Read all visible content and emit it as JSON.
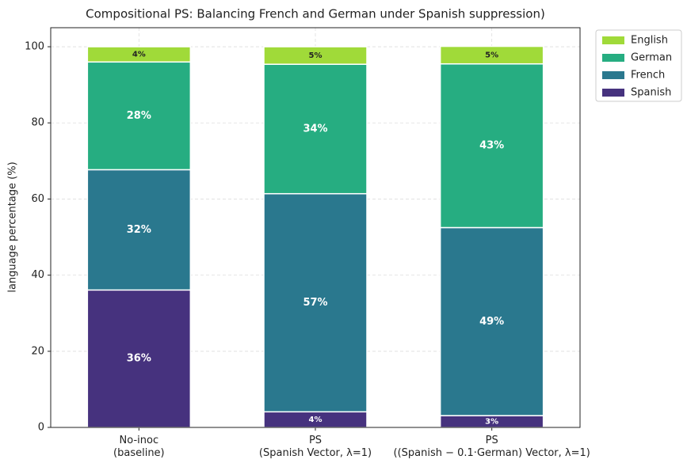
{
  "chart_data": {
    "type": "bar",
    "stacked": true,
    "title": "Compositional PS: Balancing French and German under Spanish suppression)",
    "y_label": "language percentage (%)",
    "categories": [
      "No-inoc\n(baseline)",
      "PS\n(Spanish Vector, λ=1)",
      "PS\n((Spanish − 0.1·German) Vector, λ=1)"
    ],
    "series": [
      {
        "name": "Spanish",
        "color": "#46327e",
        "values": [
          36.1,
          4.1,
          3.1
        ],
        "value_labels": [
          "36%",
          "4%",
          "3%"
        ]
      },
      {
        "name": "French",
        "color": "#2a788e",
        "values": [
          31.6,
          57.3,
          49.4
        ],
        "value_labels": [
          "32%",
          "57%",
          "49%"
        ]
      },
      {
        "name": "German",
        "color": "#26ad81",
        "values": [
          28.3,
          34.0,
          43.0
        ],
        "value_labels": [
          "28%",
          "34%",
          "43%"
        ]
      },
      {
        "name": "English",
        "color": "#a0da39",
        "values": [
          4.0,
          4.6,
          4.6
        ],
        "value_labels": [
          "4%",
          "5%",
          "5%"
        ]
      }
    ],
    "ylim": [
      0,
      105
    ],
    "yticks": [
      0,
      20,
      40,
      60,
      80,
      100
    ],
    "grid": true,
    "legend": "upper right outside"
  }
}
